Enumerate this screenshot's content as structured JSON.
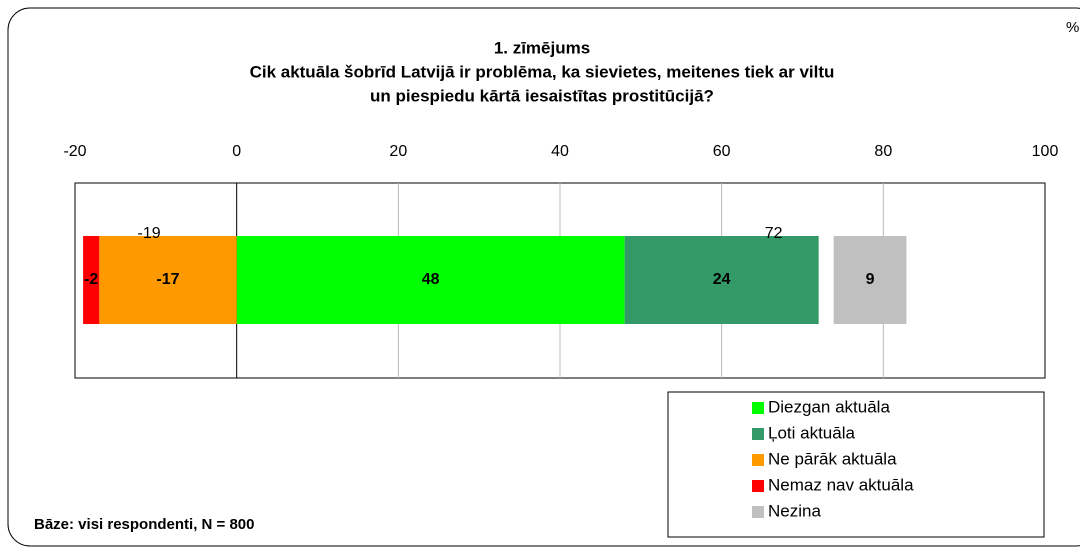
{
  "chart_data": {
    "type": "diverging_stacked_bar",
    "title_lines": [
      "1. zīmējums",
      "Cik aktuāla šobrīd Latvijā ir problēma, ka sievietes, meitenes tiek ar viltu",
      "un piespiedu kārtā iesaistītas prostitūcijā?"
    ],
    "unit": "%",
    "note": "Bāze: visi respondenti, N = 800",
    "series": [
      {
        "name": "Diezgan aktuāla",
        "color": "#00ff00",
        "values": [
          48
        ]
      },
      {
        "name": "Ļoti aktuāla",
        "color": "#339966",
        "values": [
          24
        ]
      },
      {
        "name": "Ne pārāk aktuāla",
        "color": "#ff9900",
        "values": [
          -17
        ]
      },
      {
        "name": "Nemaz nav aktuāla",
        "color": "#ff0000",
        "values": [
          -2
        ]
      },
      {
        "name": "Nezina",
        "color": "#c0c0c0",
        "values": [
          9
        ],
        "standalone": true
      }
    ],
    "totals": [
      -19,
      72
    ],
    "xlim": [
      -20,
      100
    ],
    "xticks": [
      -20,
      0,
      20,
      40,
      60,
      80,
      100
    ],
    "grid": true
  }
}
